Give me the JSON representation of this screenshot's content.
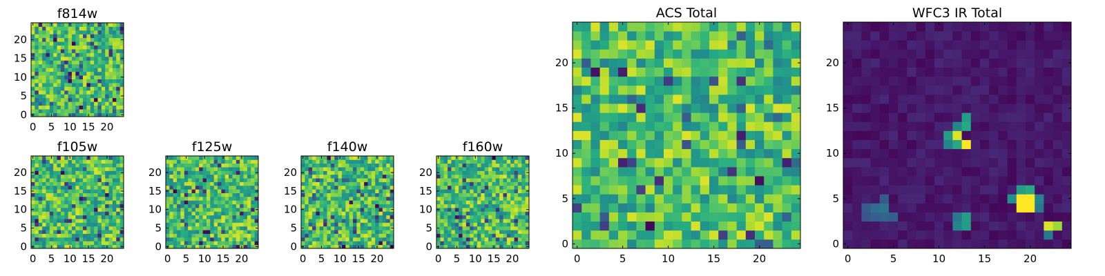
{
  "chart_data": [
    {
      "type": "heatmap",
      "title": "f814w",
      "grid": 25,
      "xticks": [
        "0",
        "5",
        "10",
        "15",
        "20"
      ],
      "yticks": [
        "0",
        "5",
        "10",
        "15",
        "20"
      ],
      "xlim": [
        -0.5,
        24.5
      ],
      "ylim": [
        -0.5,
        24.5
      ],
      "colormap": "viridis",
      "pattern": "noise"
    },
    {
      "type": "heatmap",
      "title": "f105w",
      "grid": 25,
      "xticks": [
        "0",
        "5",
        "10",
        "15",
        "20"
      ],
      "yticks": [
        "0",
        "5",
        "10",
        "15",
        "20"
      ],
      "xlim": [
        -0.5,
        24.5
      ],
      "ylim": [
        -0.5,
        24.5
      ],
      "colormap": "viridis",
      "pattern": "noise"
    },
    {
      "type": "heatmap",
      "title": "f125w",
      "grid": 25,
      "xticks": [
        "0",
        "5",
        "10",
        "15",
        "20"
      ],
      "yticks": [
        "0",
        "5",
        "10",
        "15",
        "20"
      ],
      "xlim": [
        -0.5,
        24.5
      ],
      "ylim": [
        -0.5,
        24.5
      ],
      "colormap": "viridis",
      "pattern": "noise"
    },
    {
      "type": "heatmap",
      "title": "f140w",
      "grid": 25,
      "xticks": [
        "0",
        "5",
        "10",
        "15",
        "20"
      ],
      "yticks": [
        "0",
        "5",
        "10",
        "15",
        "20"
      ],
      "xlim": [
        -0.5,
        24.5
      ],
      "ylim": [
        -0.5,
        24.5
      ],
      "colormap": "viridis",
      "pattern": "noise"
    },
    {
      "type": "heatmap",
      "title": "f160w",
      "grid": 25,
      "xticks": [
        "0",
        "5",
        "10",
        "15",
        "20"
      ],
      "yticks": [
        "0",
        "5",
        "10",
        "15",
        "20"
      ],
      "xlim": [
        -0.5,
        24.5
      ],
      "ylim": [
        -0.5,
        24.5
      ],
      "colormap": "viridis",
      "pattern": "noise"
    },
    {
      "type": "heatmap",
      "title": "ACS Total",
      "grid": 25,
      "xticks": [
        "0",
        "5",
        "10",
        "15",
        "20"
      ],
      "yticks": [
        "0",
        "5",
        "10",
        "15",
        "20"
      ],
      "xlim": [
        -0.5,
        24.5
      ],
      "ylim": [
        -0.5,
        24.5
      ],
      "colormap": "viridis",
      "pattern": "noise"
    },
    {
      "type": "heatmap",
      "title": "WFC3 IR Total",
      "grid": 25,
      "xticks": [
        "0",
        "5",
        "10",
        "15",
        "20"
      ],
      "yticks": [
        "0",
        "5",
        "10",
        "15",
        "20"
      ],
      "xlim": [
        -0.5,
        24.5
      ],
      "ylim": [
        -0.5,
        24.5
      ],
      "colormap": "viridis",
      "pattern": "sources",
      "sources": [
        {
          "x": 12,
          "y": 12,
          "value": 0.95
        },
        {
          "x": 13,
          "y": 11,
          "value": 1.0
        },
        {
          "x": 11,
          "y": 12,
          "value": 0.55
        },
        {
          "x": 12,
          "y": 11,
          "value": 0.6
        },
        {
          "x": 13,
          "y": 13,
          "value": 0.6
        },
        {
          "x": 13,
          "y": 14,
          "value": 0.55
        },
        {
          "x": 11,
          "y": 11,
          "value": 0.45
        },
        {
          "x": 12,
          "y": 13,
          "value": 0.45
        },
        {
          "x": 19,
          "y": 5,
          "value": 1.0
        },
        {
          "x": 20,
          "y": 5,
          "value": 1.0
        },
        {
          "x": 19,
          "y": 4,
          "value": 1.0
        },
        {
          "x": 20,
          "y": 4,
          "value": 1.0
        },
        {
          "x": 19,
          "y": 6,
          "value": 0.55
        },
        {
          "x": 20,
          "y": 6,
          "value": 0.6
        },
        {
          "x": 18,
          "y": 5,
          "value": 0.5
        },
        {
          "x": 21,
          "y": 5,
          "value": 0.45
        },
        {
          "x": 21,
          "y": 4,
          "value": 0.4
        },
        {
          "x": 22,
          "y": 2,
          "value": 0.95
        },
        {
          "x": 23,
          "y": 2,
          "value": 0.85
        },
        {
          "x": 22,
          "y": 1,
          "value": 0.4
        },
        {
          "x": 13,
          "y": 2,
          "value": 0.55
        },
        {
          "x": 13,
          "y": 3,
          "value": 0.55
        },
        {
          "x": 12,
          "y": 2,
          "value": 0.45
        },
        {
          "x": 12,
          "y": 3,
          "value": 0.4
        },
        {
          "x": 3,
          "y": 4,
          "value": 0.35
        },
        {
          "x": 4,
          "y": 4,
          "value": 0.38
        },
        {
          "x": 3,
          "y": 3,
          "value": 0.3
        },
        {
          "x": 4,
          "y": 3,
          "value": 0.32
        },
        {
          "x": 2,
          "y": 4,
          "value": 0.28
        },
        {
          "x": 5,
          "y": 3,
          "value": 0.3
        },
        {
          "x": 4,
          "y": 5,
          "value": 0.28
        },
        {
          "x": 2,
          "y": 3,
          "value": 0.26
        }
      ]
    }
  ]
}
